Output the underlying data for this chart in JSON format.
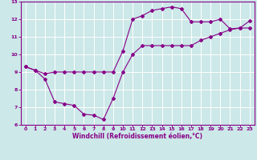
{
  "xlabel": "Windchill (Refroidissement éolien,°C)",
  "background_color": "#cce8e8",
  "grid_color": "#ffffff",
  "line_color": "#880088",
  "xlim": [
    -0.5,
    23.5
  ],
  "ylim": [
    6,
    13
  ],
  "xticks": [
    0,
    1,
    2,
    3,
    4,
    5,
    6,
    7,
    8,
    9,
    10,
    11,
    12,
    13,
    14,
    15,
    16,
    17,
    18,
    19,
    20,
    21,
    22,
    23
  ],
  "yticks": [
    6,
    7,
    8,
    9,
    10,
    11,
    12,
    13
  ],
  "series1_x": [
    0,
    1,
    2,
    3,
    4,
    5,
    6,
    7,
    8,
    9,
    10,
    11,
    12,
    13,
    14,
    15,
    16,
    17,
    18,
    19,
    20,
    21,
    22,
    23
  ],
  "series1_y": [
    9.3,
    9.1,
    8.6,
    7.3,
    7.2,
    7.1,
    6.6,
    6.55,
    6.3,
    7.5,
    9.0,
    10.0,
    10.5,
    10.5,
    10.5,
    10.5,
    10.5,
    10.5,
    10.8,
    11.0,
    11.2,
    11.4,
    11.5,
    11.5
  ],
  "series2_x": [
    0,
    1,
    2,
    3,
    4,
    5,
    6,
    7,
    8,
    9,
    10,
    11,
    12,
    13,
    14,
    15,
    16,
    17,
    18,
    19,
    20,
    21,
    22,
    23
  ],
  "series2_y": [
    9.3,
    9.1,
    8.9,
    9.0,
    9.0,
    9.0,
    9.0,
    9.0,
    9.0,
    9.0,
    10.2,
    12.0,
    12.2,
    12.5,
    12.6,
    12.7,
    12.6,
    11.85,
    11.85,
    11.85,
    12.0,
    11.45,
    11.5,
    11.9
  ]
}
